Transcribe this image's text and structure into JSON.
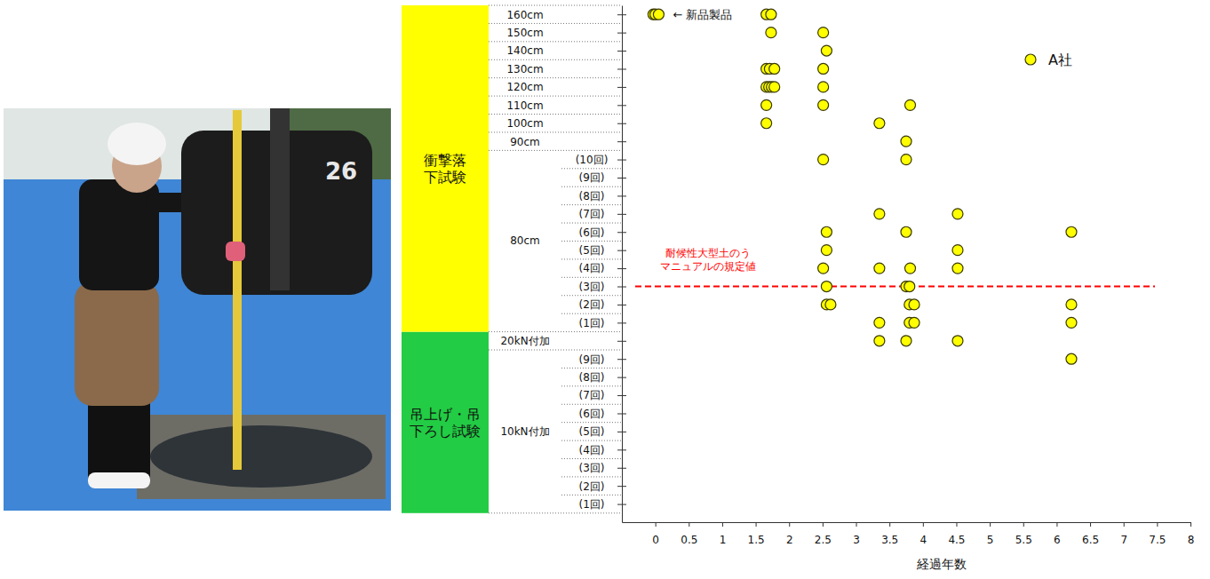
{
  "chart_data": {
    "type": "scatter",
    "x_label": "経過年数",
    "xlim": [
      -0.5,
      8
    ],
    "xticks": [
      0,
      0.5,
      1,
      1.5,
      2,
      2.5,
      3,
      3.5,
      4,
      4.5,
      5,
      5.5,
      6,
      6.5,
      7,
      7.5,
      8
    ],
    "ylim": [
      -1,
      27.5
    ],
    "yticks": [
      {
        "value": 0,
        "label": "(1回)"
      },
      {
        "value": 1,
        "label": "(2回)"
      },
      {
        "value": 2,
        "label": "(3回)"
      },
      {
        "value": 3,
        "label": "(4回)"
      },
      {
        "value": 4,
        "label": "(5回)"
      },
      {
        "value": 5,
        "label": "(6回)"
      },
      {
        "value": 6,
        "label": "(7回)"
      },
      {
        "value": 7,
        "label": "(8回)"
      },
      {
        "value": 8,
        "label": "(9回)"
      },
      {
        "value": 9,
        "label": "20kN付加"
      },
      {
        "value": 10,
        "label": "(1回)"
      },
      {
        "value": 11,
        "label": "(2回)"
      },
      {
        "value": 12,
        "label": "(3回)"
      },
      {
        "value": 13,
        "label": "(4回)"
      },
      {
        "value": 14,
        "label": "(5回)"
      },
      {
        "value": 15,
        "label": "(6回)"
      },
      {
        "value": 16,
        "label": "(7回)"
      },
      {
        "value": 17,
        "label": "(8回)"
      },
      {
        "value": 18,
        "label": "(9回)"
      },
      {
        "value": 19,
        "label": "(10回)"
      },
      {
        "value": 20,
        "label": "90cm"
      },
      {
        "value": 21,
        "label": "100cm"
      },
      {
        "value": 22,
        "label": "110cm"
      },
      {
        "value": 23,
        "label": "120cm"
      },
      {
        "value": 24,
        "label": "130cm"
      },
      {
        "value": 25,
        "label": "140cm"
      },
      {
        "value": 26,
        "label": "150cm"
      },
      {
        "value": 27,
        "label": "160cm"
      }
    ],
    "row_groups": [
      {
        "label": "10kN付加",
        "rows": [
          0,
          8
        ]
      },
      {
        "label": "80cm",
        "rows": [
          10,
          19
        ]
      }
    ],
    "sections": [
      {
        "label": "吊上げ・吊下ろし試験",
        "rows": [
          0,
          9
        ],
        "color": "#22cc44"
      },
      {
        "label": "衝撃落下試験",
        "rows": [
          10,
          27
        ],
        "color": "#ffff00"
      }
    ],
    "series": [
      {
        "name": "A社",
        "color": "#ffff00",
        "marker": "circle",
        "x": [
          -0.03,
          0,
          0.05,
          1.66,
          1.73,
          1.73,
          2.51,
          2.56,
          1.66,
          1.71,
          1.78,
          2.51,
          1.66,
          1.7,
          1.74,
          1.78,
          2.51,
          1.66,
          2.51,
          3.81,
          1.66,
          3.35,
          3.75,
          2.51,
          3.75,
          3.35,
          4.52,
          2.56,
          3.75,
          6.22,
          2.56,
          4.52,
          2.51,
          3.35,
          3.81,
          4.52,
          2.56,
          3.75,
          3.8,
          2.56,
          2.62,
          3.8,
          3.87,
          6.22,
          3.35,
          3.8,
          3.87,
          6.22,
          3.35,
          3.75,
          4.52,
          6.22
        ],
        "y": [
          27,
          27,
          27,
          27,
          27,
          26,
          26,
          25,
          24,
          24,
          24,
          24,
          23,
          23,
          23,
          23,
          23,
          22,
          22,
          22,
          21,
          21,
          20,
          19,
          19,
          16,
          16,
          15,
          15,
          15,
          14,
          14,
          13,
          13,
          13,
          13,
          12,
          12,
          12,
          11,
          11,
          11,
          11,
          11,
          10,
          10,
          10,
          10,
          9,
          9,
          9,
          8
        ]
      }
    ],
    "legend": "top-right",
    "reference_line": {
      "y": 12,
      "label": [
        "耐候性大型土のう",
        "マニュアルの規定値"
      ],
      "color": "#ff0000",
      "line_style": "dashed"
    },
    "annotations": [
      {
        "text": "← 新品製品"
      }
    ]
  },
  "photo": {
    "label": "26"
  }
}
